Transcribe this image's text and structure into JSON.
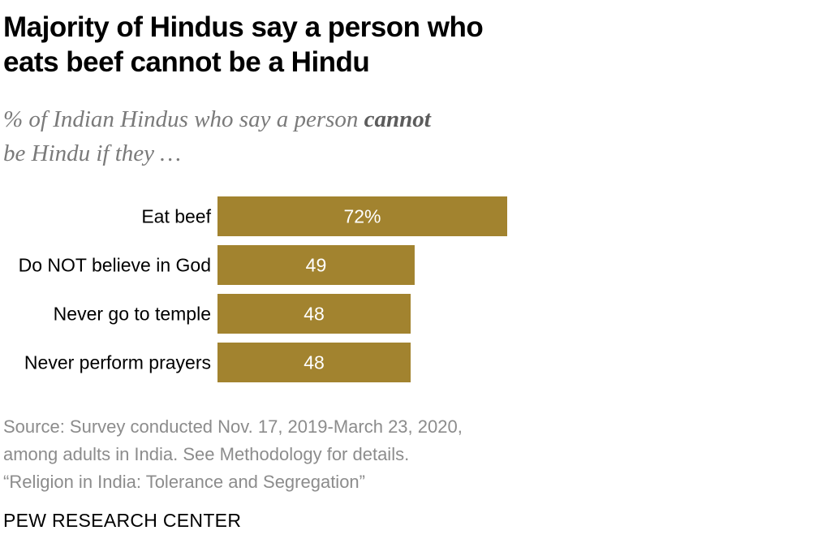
{
  "header": {
    "title_line1": "Majority of Hindus say a person who",
    "title_line2": "eats beef cannot be a Hindu",
    "subtitle_pre": "% of Indian Hindus who say a person ",
    "subtitle_em": "cannot",
    "subtitle_post": "be Hindu if they …"
  },
  "chart_data": {
    "type": "bar",
    "orientation": "horizontal",
    "title": "Majority of Hindus say a person who eats beef cannot be a Hindu",
    "subtitle": "% of Indian Hindus who say a person cannot be Hindu if they …",
    "categories": [
      "Eat beef",
      "Do NOT believe in God",
      "Never go to temple",
      "Never perform prayers"
    ],
    "values": [
      72,
      49,
      48,
      48
    ],
    "value_labels": [
      "72%",
      "49",
      "48",
      "48"
    ],
    "xlim": [
      0,
      100
    ],
    "xlabel": "",
    "ylabel": "",
    "grid": false,
    "bar_color": "#a2832f",
    "label_color": "#ffffff"
  },
  "footer": {
    "source_line1": "Source: Survey conducted Nov. 17, 2019-March 23, 2020,",
    "source_line2": "among adults in India. See Methodology for details.",
    "source_line3": "“Religion in India: Tolerance and Segregation”",
    "brand": "PEW RESEARCH CENTER"
  }
}
